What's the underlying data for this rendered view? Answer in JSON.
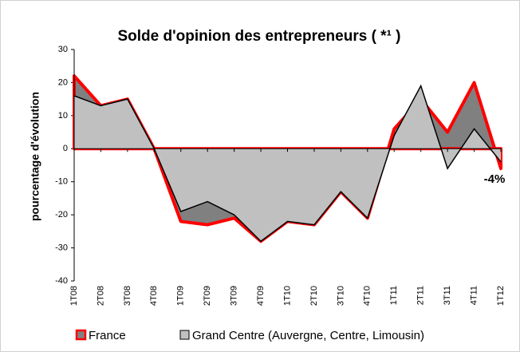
{
  "chart_data": {
    "type": "area",
    "title": "Solde d'opinion des entrepreneurs ( *¹ )",
    "y_label": "pourcentage d'évolution",
    "categories": [
      "1T08",
      "2T08",
      "3T08",
      "4T08",
      "1T09",
      "2T09",
      "3T09",
      "4T09",
      "1T10",
      "2T10",
      "3T10",
      "4T10",
      "1T11",
      "2T11",
      "3T11",
      "4T11",
      "1T12"
    ],
    "series": [
      {
        "name": "France",
        "color": "#808080",
        "stroke": "#ff0000",
        "values": [
          22,
          13,
          15,
          0,
          -22,
          -23,
          -21,
          -28,
          -22,
          -23,
          -13,
          -21,
          6,
          15,
          5,
          20,
          -6
        ]
      },
      {
        "name": "Grand Centre (Auvergne, Centre, Limousin)",
        "color": "#c0c0c0",
        "stroke": "#000000",
        "values": [
          16,
          13,
          15,
          0,
          -19,
          -16,
          -20,
          -28,
          -22,
          -23,
          -13,
          -21,
          4,
          19,
          -6,
          6,
          -4
        ],
        "value_labels": [
          null,
          null,
          null,
          null,
          null,
          null,
          null,
          null,
          null,
          null,
          null,
          null,
          null,
          null,
          null,
          null,
          "-4%"
        ]
      }
    ],
    "ylim": [
      -40,
      30
    ],
    "yticks": [
      -40,
      -30,
      -20,
      -10,
      0,
      10,
      20,
      30
    ],
    "legend": "bottom"
  }
}
